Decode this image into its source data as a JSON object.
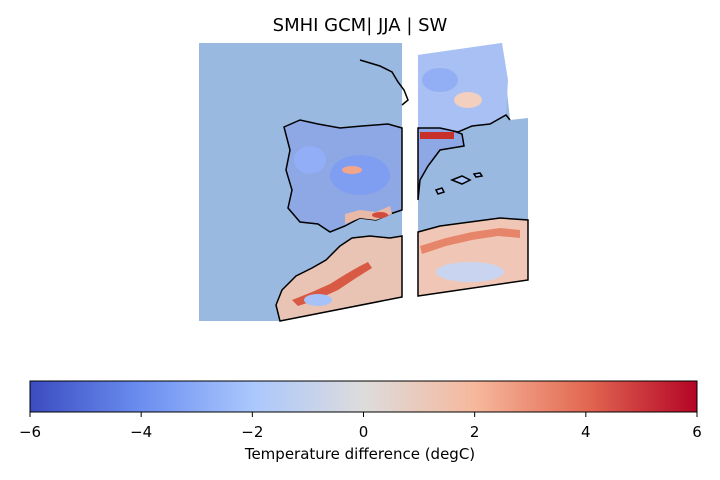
{
  "title": "SMHI GCM| JJA | SW",
  "map": {
    "ocean_color": "#99b9e0",
    "coastline_color": "#000000",
    "regions": [
      "france-coast",
      "iberian-peninsula",
      "north-africa",
      "balearic-islands",
      "sardinia-corsica"
    ]
  },
  "colorbar": {
    "label": "Temperature difference (degC)",
    "colormap": "coolwarm",
    "min": -6,
    "max": 6,
    "ticks": [
      "−6",
      "−4",
      "−2",
      "0",
      "2",
      "4",
      "6"
    ],
    "colors": [
      "#3b4cc0",
      "#6b8ef0",
      "#aac7fd",
      "#dddcdc",
      "#f6b89c",
      "#e26952",
      "#b40426"
    ]
  }
}
